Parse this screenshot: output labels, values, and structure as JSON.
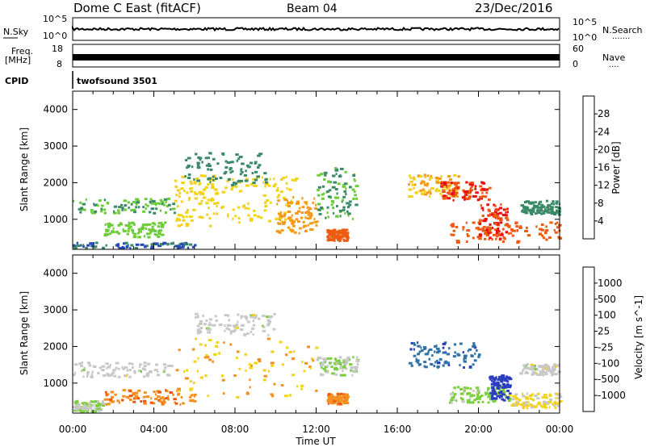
{
  "header": {
    "station": "Dome C East (fitACF)",
    "beam": "Beam 04",
    "date": "23/Dec/2016"
  },
  "strips": {
    "nsky_label": "N.Sky",
    "nsearch_label": "N.Search",
    "nsearch_dots": "·······",
    "freq_label_1": "Freq.",
    "freq_label_2": "[MHz]",
    "nave_label": "Nave",
    "nave_dots": "····",
    "cpid_label": "CPID",
    "cpid_value": "twofsound 3501",
    "nsky_ticks": [
      "10^5",
      "10^0"
    ],
    "nsearch_ticks": [
      "10^5",
      "10^0"
    ],
    "freq_ticks": [
      "18",
      "8"
    ],
    "nave_ticks": [
      "60",
      "0"
    ]
  },
  "axes": {
    "xlabel": "Time UT",
    "ylabel": "Slant Range [km]",
    "x_ticks": [
      "00:00",
      "04:00",
      "08:00",
      "12:00",
      "16:00",
      "20:00",
      "00:00"
    ],
    "y_ticks": [
      "1000",
      "2000",
      "3000",
      "4000"
    ]
  },
  "colorbars": {
    "power": {
      "label": "Power [dB]",
      "ticks": [
        "4",
        "8",
        "12",
        "16",
        "20",
        "24",
        "28"
      ],
      "colors": [
        "#0000ff",
        "#2848b8",
        "#3a8a6a",
        "#6dcc3a",
        "#f2d21a",
        "#f59a18",
        "#ee5a10",
        "#e61010"
      ]
    },
    "velocity": {
      "label": "Velocity [m s^-1]",
      "ticks": [
        "1000",
        "500",
        "100",
        "25",
        "-25",
        "-100",
        "-500",
        "-1000"
      ],
      "colors": [
        "#2a3cc0",
        "#2f73a8",
        "#3f8f5e",
        "#79cf3c",
        "#c8c8c8",
        "#f2d21a",
        "#f39020",
        "#ef5510",
        "#e61010"
      ]
    }
  },
  "chart_data": [
    {
      "type": "heatmap",
      "title": "Power [dB]",
      "xlabel": "Time UT",
      "ylabel": "Slant Range [km]",
      "xlim": [
        0,
        24
      ],
      "ylim": [
        180,
        4500
      ],
      "clim": [
        0,
        32
      ],
      "regions": [
        {
          "t": [
            0,
            5
          ],
          "r": [
            1150,
            1550
          ],
          "v": 12
        },
        {
          "t": [
            0,
            6
          ],
          "r": [
            200,
            350
          ],
          "v": 8
        },
        {
          "t": [
            1.5,
            4.5
          ],
          "r": [
            500,
            900
          ],
          "v": 14
        },
        {
          "t": [
            5,
            7
          ],
          "r": [
            800,
            2200
          ],
          "v": 18
        },
        {
          "t": [
            7,
            11
          ],
          "r": [
            900,
            2200
          ],
          "v": 18
        },
        {
          "t": [
            5.5,
            9.5
          ],
          "r": [
            1900,
            2800
          ],
          "v": 10
        },
        {
          "t": [
            10,
            12
          ],
          "r": [
            600,
            1600
          ],
          "v": 22
        },
        {
          "t": [
            12,
            14
          ],
          "r": [
            1000,
            2400
          ],
          "v": 12
        },
        {
          "t": [
            12.5,
            13.5
          ],
          "r": [
            400,
            700
          ],
          "v": 26
        },
        {
          "t": [
            16.5,
            19
          ],
          "r": [
            1600,
            2200
          ],
          "v": 20
        },
        {
          "t": [
            18,
            20.5
          ],
          "r": [
            1500,
            2000
          ],
          "v": 28
        },
        {
          "t": [
            18.5,
            24
          ],
          "r": [
            350,
            900
          ],
          "v": 26
        },
        {
          "t": [
            20,
            21.5
          ],
          "r": [
            450,
            1400
          ],
          "v": 28
        },
        {
          "t": [
            22,
            24
          ],
          "r": [
            1100,
            1500
          ],
          "v": 10
        }
      ]
    },
    {
      "type": "heatmap",
      "title": "Velocity [m s^-1]",
      "xlabel": "Time UT",
      "ylabel": "Slant Range [km]",
      "xlim": [
        0,
        24
      ],
      "ylim": [
        180,
        4500
      ],
      "clim": [
        -1000,
        1000
      ],
      "regions": [
        {
          "t": [
            0,
            5
          ],
          "r": [
            1150,
            1550
          ],
          "v": 0
        },
        {
          "t": [
            0,
            1.5
          ],
          "r": [
            200,
            500
          ],
          "v": 100
        },
        {
          "t": [
            1.5,
            6
          ],
          "r": [
            400,
            800
          ],
          "v": -500
        },
        {
          "t": [
            5,
            12
          ],
          "r": [
            600,
            2200
          ],
          "v": -300
        },
        {
          "t": [
            6,
            10
          ],
          "r": [
            2300,
            2900
          ],
          "v": 0
        },
        {
          "t": [
            12,
            14
          ],
          "r": [
            1200,
            1700
          ],
          "v": 100
        },
        {
          "t": [
            12.5,
            13.5
          ],
          "r": [
            400,
            700
          ],
          "v": -500
        },
        {
          "t": [
            16.5,
            20
          ],
          "r": [
            1400,
            2100
          ],
          "v": 700
        },
        {
          "t": [
            18.5,
            21.5
          ],
          "r": [
            450,
            900
          ],
          "v": 200
        },
        {
          "t": [
            20.5,
            21.5
          ],
          "r": [
            500,
            1200
          ],
          "v": 1000
        },
        {
          "t": [
            21.5,
            24
          ],
          "r": [
            300,
            700
          ],
          "v": -150
        },
        {
          "t": [
            22,
            24
          ],
          "r": [
            1200,
            1500
          ],
          "v": 0
        }
      ]
    }
  ]
}
